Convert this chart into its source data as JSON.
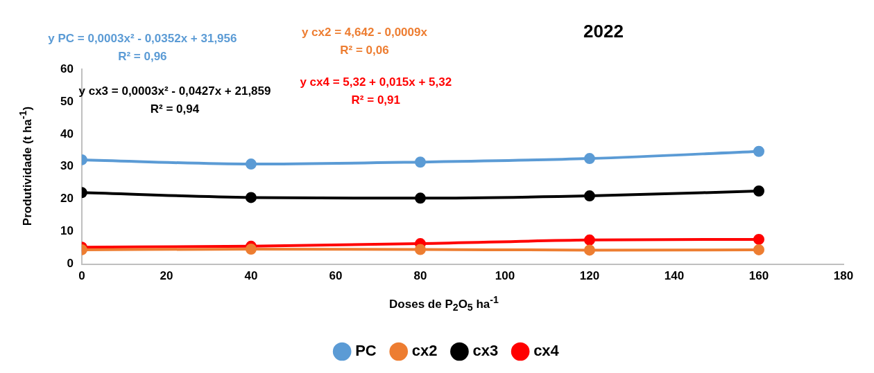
{
  "chart_data": {
    "type": "line",
    "title": "2022",
    "xlabel": "Doses de P$_{2}$O$_{5}$ ha$^{-1}$",
    "ylabel": "Produtividade (t ha$^{-1}$)",
    "x": [
      0,
      40,
      80,
      120,
      160
    ],
    "series": [
      {
        "name": "PC",
        "color": "#5b9bd5",
        "values": [
          32.1,
          30.8,
          31.4,
          32.5,
          34.7
        ]
      },
      {
        "name": "cx2",
        "color": "#ed7d31",
        "values": [
          4.4,
          4.6,
          4.5,
          4.3,
          4.4
        ]
      },
      {
        "name": "cx3",
        "color": "#000000",
        "values": [
          22.0,
          20.5,
          20.3,
          21.0,
          22.5
        ]
      },
      {
        "name": "cx4",
        "color": "#ff0000",
        "values": [
          5.2,
          5.5,
          6.3,
          7.4,
          7.6
        ]
      }
    ],
    "annotations": [
      "y PC = 0,0003x² - 0,0352x + 31,956\nR² = 0,96",
      "y cx2 = 4,642 - 0,0009x\nR² = 0,06",
      "y cx3 = 0,0003x² - 0,0427x + 21,859\nR² = 0,94",
      "y cx4 = 5,32 + 0,015x + 5,32\nR² = 0,91"
    ],
    "xlim": [
      0,
      180
    ],
    "xticks": [
      0,
      20,
      40,
      60,
      80,
      100,
      120,
      140,
      160,
      180
    ],
    "ylim": [
      0,
      60
    ],
    "yticks": [
      0,
      10,
      20,
      30,
      40,
      50,
      60
    ],
    "grid": false,
    "legend": "bottom",
    "marker": "circle",
    "line_style": "solid"
  }
}
